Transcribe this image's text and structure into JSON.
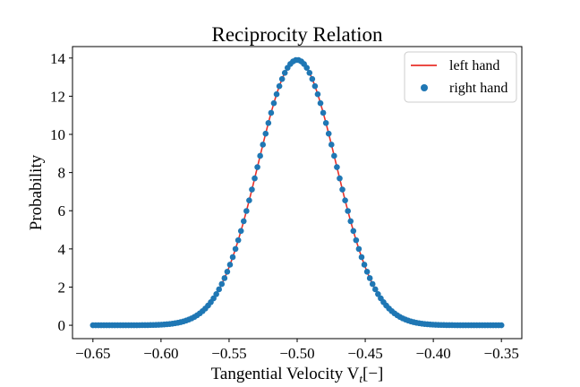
{
  "chart_data": {
    "type": "line+scatter",
    "title": "Reciprocity Relation",
    "xlabel": "Tangential Velocity V",
    "xlabel_sub": "t",
    "xlabel_suffix": "[−]",
    "ylabel": "Probability",
    "xlim": [
      -0.665,
      -0.335
    ],
    "ylim": [
      -0.7,
      14.6
    ],
    "xticks": [
      -0.65,
      -0.6,
      -0.55,
      -0.5,
      -0.45,
      -0.4,
      -0.35
    ],
    "xtick_labels": [
      "−0.65",
      "−0.60",
      "−0.55",
      "−0.50",
      "−0.45",
      "−0.40",
      "−0.35"
    ],
    "yticks": [
      0,
      2,
      4,
      6,
      8,
      10,
      12,
      14
    ],
    "ytick_labels": [
      "0",
      "2",
      "4",
      "6",
      "8",
      "10",
      "12",
      "14"
    ],
    "grid": false,
    "legend_position": "top-right",
    "distribution": {
      "form": "gaussian",
      "mean": -0.5,
      "peak": 13.9,
      "sigma": 0.0287
    },
    "series": [
      {
        "name": "left hand",
        "kind": "line",
        "color": "#e8312a",
        "x_range": [
          -0.65,
          -0.35
        ],
        "n_points": 301
      },
      {
        "name": "right hand",
        "kind": "scatter",
        "color": "#1f77b4",
        "x_range": [
          -0.65,
          -0.35
        ],
        "n_points": 150
      }
    ]
  }
}
